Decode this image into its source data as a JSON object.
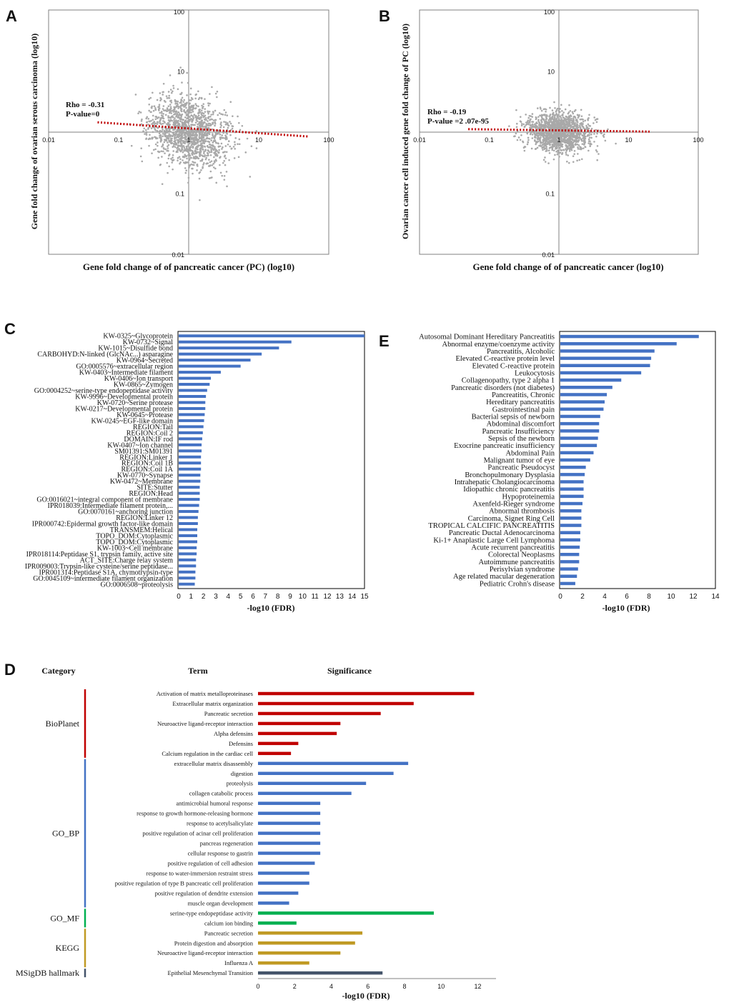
{
  "colors": {
    "scatter": "#a9a9a9",
    "trend": "#c00000",
    "bar_blue": "#4472c4",
    "bioplanet": "#c00000",
    "go_bp": "#4472c4",
    "go_mf": "#00b050",
    "kegg": "#c09a24",
    "msigdb": "#44546a",
    "axis": "#808080"
  },
  "chart_data": [
    {
      "id": "A",
      "panel_label": "A",
      "type": "scatter",
      "scale": "log10",
      "xlabel": "Gene fold change of of pancreatic cancer (PC) (log10)",
      "ylabel": "Gene fold change of ovarian serous carcinoma (log10)",
      "x_ticks": [
        "0.01",
        "0.1",
        "1",
        "10",
        "100"
      ],
      "y_ticks": [
        "100",
        "10",
        "1",
        "0.1",
        "0.01"
      ],
      "xlim": [
        0.01,
        100
      ],
      "ylim": [
        0.01,
        100
      ],
      "annotation": [
        "Rho = -0.31",
        "P-value=0"
      ],
      "trend": {
        "x": [
          0.05,
          50
        ],
        "y": [
          1.45,
          0.85
        ]
      }
    },
    {
      "id": "B",
      "panel_label": "B",
      "type": "scatter",
      "scale": "log10",
      "xlabel": "Gene fold change of of pancreatic cancer (log10)",
      "ylabel": "Ovarian cancer cell induced gene fold change of PC (log10)",
      "x_ticks": [
        "0.01",
        "0.1",
        "1",
        "10",
        "100"
      ],
      "y_ticks": [
        "100",
        "10",
        "1",
        "0.1",
        "0.01"
      ],
      "xlim": [
        0.01,
        100
      ],
      "ylim": [
        0.01,
        100
      ],
      "annotation": [
        "Rho = -0.19",
        "P-value =2 .07e-95"
      ],
      "trend": {
        "x": [
          0.05,
          20
        ],
        "y": [
          1.12,
          1.02
        ]
      }
    },
    {
      "id": "C",
      "panel_label": "C",
      "type": "bar",
      "orientation": "horizontal",
      "xlabel": "-log10 (FDR)",
      "xlim": [
        0,
        15
      ],
      "x_ticks": [
        "0",
        "1",
        "2",
        "3",
        "4",
        "5",
        "6",
        "7",
        "8",
        "9",
        "10",
        "11",
        "12",
        "13",
        "14",
        "15"
      ],
      "categories": [
        "KW-0325~Glycoprotein",
        "KW-0732~Signal",
        "KW-1015~Disulfide bond",
        "CARBOHYD:N-linked (GlcNAc...) asparagine",
        "KW-0964~Secreted",
        "GO:0005576~extracellular region",
        "KW-0403~Intermediate filament",
        "KW-0406~Ion transport",
        "KW-0865~Zymogen",
        "GO:0004252~serine-type endopeptidase activity",
        "KW-9996~Developmental protein",
        "KW-0720~Serine protease",
        "KW-0217~Developmental protein",
        "KW-0645~Protease",
        "KW-0245~EGF-like domain",
        "REGION:Tail",
        "REGION:Coil 2",
        "DOMAIN:IF rod",
        "KW-0407~Ion channel",
        "SM01391:SM01391",
        "REGION:Linker 1",
        "REGION:Coil 1B",
        "REGION:Coil 1A",
        "KW-0770~Synapse",
        "KW-0472~Membrane",
        "SITE:Stutter",
        "REGION:Head",
        "GO:0016021~integral component of membrane",
        "IPR018039:Intermediate filament protein,...",
        "GO:0070161~anchoring junction",
        "REGION:Linker 12",
        "IPR000742:Epidermal growth factor-like domain",
        "TRANSMEM:Helical",
        "TOPO_DOM:Cytoplasmic",
        "TOPO_DOM:Cytoplasmic",
        "KW-1003~Cell membrane",
        "IPR018114:Peptidase S1, trypsin family, active site",
        "ACT_SITE:Charge relay system",
        "IPR009003:Trypsin-like cysteine/serine peptidase...",
        "IPR001314:Peptidase S1A, chymotrypsin-type",
        "GO:0045109~intermediate filament organization",
        "GO:0006508~proteolysis"
      ],
      "values": [
        15.0,
        9.1,
        8.1,
        6.7,
        5.8,
        5.0,
        3.4,
        2.6,
        2.5,
        2.3,
        2.2,
        2.15,
        2.15,
        2.1,
        2.05,
        2.0,
        1.95,
        1.9,
        1.85,
        1.85,
        1.8,
        1.8,
        1.8,
        1.75,
        1.75,
        1.7,
        1.7,
        1.7,
        1.65,
        1.6,
        1.55,
        1.55,
        1.5,
        1.5,
        1.5,
        1.45,
        1.45,
        1.4,
        1.4,
        1.35,
        1.35,
        1.3
      ]
    },
    {
      "id": "E",
      "panel_label": "E",
      "type": "bar",
      "orientation": "horizontal",
      "xlabel": "-log10 (FDR)",
      "xlim": [
        0,
        14
      ],
      "x_ticks": [
        "0",
        "2",
        "4",
        "6",
        "8",
        "10",
        "12",
        "14"
      ],
      "categories": [
        "Autosomal Dominant Hereditary Pancreatitis",
        "Abnormal enzyme/coenzyme activity",
        "Pancreatitis, Alcoholic",
        "Elevated C-reactive protein level",
        "Elevated C-reactive protein",
        "Leukocytosis",
        "Collagenopathy, type 2 alpha 1",
        "Pancreatic disorders (not diabetes)",
        "Pancreatitis, Chronic",
        "Hereditary pancreatitis",
        "Gastrointestinal pain",
        "Bacterial sepsis of newborn",
        "Abdominal discomfort",
        "Pancreatic Insufficiency",
        "Sepsis of the newborn",
        "Exocrine pancreatic insufficiency",
        "Abdominal Pain",
        "Malignant tumor of eye",
        "Pancreatic Pseudocyst",
        "Bronchopulmonary Dysplasia",
        "Intrahepatic Cholangiocarcinoma",
        "Idiopathic chronic pancreatitis",
        "Hypoproteinemia",
        "Axenfeld-Rieger syndrome",
        "Abnormal thrombosis",
        "Carcinoma, Signet Ring Cell",
        "TROPICAL CALCIFIC PANCREATITIS",
        "Pancreatic Ductal Adenocarcinoma",
        "Ki-1+ Anaplastic Large Cell Lymphoma",
        "Acute recurrent pancreatitis",
        "Colorectal Neoplasms",
        "Autoimmune pancreatitis",
        "Perisylvian syndrome",
        "Age related macular degeneration",
        "Pediatric Crohn's disease"
      ],
      "values": [
        12.5,
        10.5,
        8.5,
        8.2,
        8.1,
        7.3,
        5.5,
        4.7,
        4.2,
        4.0,
        3.9,
        3.6,
        3.5,
        3.5,
        3.4,
        3.3,
        3.0,
        2.7,
        2.3,
        2.2,
        2.1,
        2.1,
        2.1,
        2.0,
        1.9,
        1.9,
        1.9,
        1.8,
        1.8,
        1.75,
        1.7,
        1.7,
        1.6,
        1.5,
        1.35
      ]
    },
    {
      "id": "D",
      "panel_label": "D",
      "type": "bar",
      "orientation": "horizontal",
      "xlabel": "-log10 (FDR)",
      "xlim": [
        0,
        12
      ],
      "x_ticks": [
        "0",
        "2",
        "4",
        "6",
        "8",
        "10",
        "12"
      ],
      "headers": {
        "category": "Category",
        "term": "Term",
        "significance": "Significance"
      },
      "groups": [
        {
          "name": "BioPlanet",
          "color": "#c00000",
          "terms": [
            "Activation of matrix metalloproteinases",
            "Extracellular matrix organization",
            "Pancreatic secretion",
            "Neuroactive ligand-receptor interaction",
            "Alpha defensins",
            "Defensins",
            "Calcium regulation in the cardiac cell"
          ],
          "values": [
            11.8,
            8.5,
            6.7,
            4.5,
            4.3,
            2.2,
            1.8
          ]
        },
        {
          "name": "GO_BP",
          "color": "#4472c4",
          "terms": [
            "extracellular matrix disassembly",
            "digestion",
            "proteolysis",
            "collagen catabolic process",
            "antimicrobial humoral response",
            "response to growth hormone-releasing hormone",
            "response to acetylsalicylate",
            "positive regulation of acinar cell proliferation",
            "pancreas regeneration",
            "cellular response to gastrin",
            "positive regulation of cell adhesion",
            "response to water-immersion restraint stress",
            "positive regulation of type B pancreatic cell proliferation",
            "positive regulation of dendrite extension",
            "muscle organ development"
          ],
          "values": [
            8.2,
            7.4,
            5.9,
            5.1,
            3.4,
            3.4,
            3.4,
            3.4,
            3.4,
            3.4,
            3.1,
            2.8,
            2.8,
            2.2,
            1.7
          ]
        },
        {
          "name": "GO_MF",
          "color": "#00b050",
          "terms": [
            "serine-type endopeptidase activity",
            "calcium ion binding"
          ],
          "values": [
            9.6,
            2.1
          ]
        },
        {
          "name": "KEGG",
          "color": "#c09a24",
          "terms": [
            "Pancreatic secretion",
            "Protein digestion and absorption",
            "Neuroactive ligand-receptor interaction",
            "Influenza A"
          ],
          "values": [
            5.7,
            5.3,
            4.5,
            2.8
          ]
        },
        {
          "name": "MSigDB hallmark",
          "color": "#44546a",
          "terms": [
            "Epithelial Mesenchymal Transition"
          ],
          "values": [
            6.8
          ]
        }
      ]
    }
  ]
}
